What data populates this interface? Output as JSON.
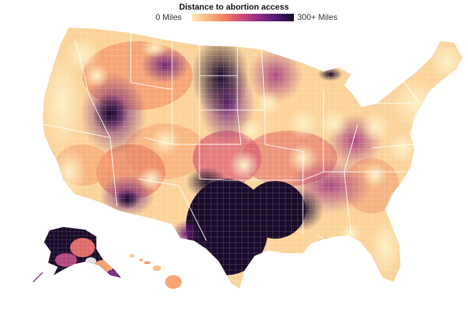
{
  "legend": {
    "title": "Distance to abortion access",
    "min_label": "0 Miles",
    "max_label": "300+ Miles",
    "color_stops": [
      "#fde9b6",
      "#fbb27e",
      "#ef7a62",
      "#c9497a",
      "#8a2c86",
      "#4c1a6e",
      "#1a0b2a"
    ]
  },
  "map": {
    "colors": {
      "land_background": "#fbd39a",
      "county_line": "#ffffff",
      "state_line": "#ffffff"
    }
  }
}
